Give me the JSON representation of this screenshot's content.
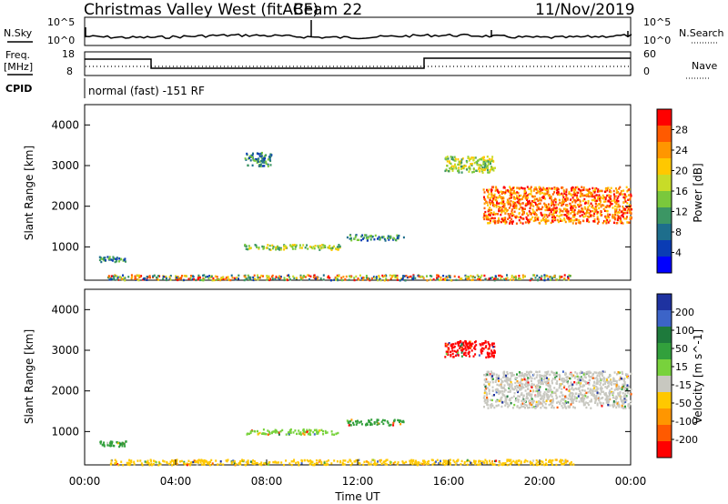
{
  "header": {
    "site": "Christmas Valley West (fitACF)",
    "beam": "Beam 22",
    "date": "11/Nov/2019"
  },
  "summary_panel": {
    "left_top_label": "N.Sky",
    "left_freq_label_1": "Freq.",
    "left_freq_label_2": "[MHz]",
    "left_cpid_label": "CPID",
    "right_top_label": "N.Search",
    "right_nave_label": "Nave",
    "noise_ticks": [
      "10^5",
      "10^0"
    ],
    "freq_ticks": [
      "18",
      "8"
    ],
    "nave_ticks": [
      "60",
      "0"
    ],
    "cpid_text": "normal (fast) -151 RF"
  },
  "chart_data": [
    {
      "type": "heatmap",
      "name_text": "power",
      "ylabel": "Slant Range [km]",
      "xlabel": "",
      "colorbar_label": "Power [dB]",
      "colorbar_ticks": [
        "28",
        "24",
        "20",
        "16",
        "12",
        "8",
        "4"
      ],
      "colorbar_colors": [
        "#ff0000",
        "#ff5a00",
        "#ff9600",
        "#ffc800",
        "#c8dc28",
        "#7ac83c",
        "#3c9664",
        "#1e6e8c",
        "#0a3cb4",
        "#0000ff"
      ],
      "xlim": [
        0,
        24
      ],
      "ylim": [
        180,
        4500
      ],
      "yticks": [
        "1000",
        "2000",
        "3000",
        "4000"
      ],
      "regions": [
        {
          "t": [
            0.6,
            1.8
          ],
          "r": [
            650,
            780
          ],
          "level": "low"
        },
        {
          "t": [
            1.0,
            21.5
          ],
          "r": [
            200,
            330
          ],
          "level": "mixed"
        },
        {
          "t": [
            7.0,
            11.2
          ],
          "r": [
            950,
            1080
          ],
          "level": "mid"
        },
        {
          "t": [
            7.0,
            8.2
          ],
          "r": [
            3000,
            3350
          ],
          "level": "low"
        },
        {
          "t": [
            11.5,
            14.0
          ],
          "r": [
            1180,
            1320
          ],
          "level": "low"
        },
        {
          "t": [
            15.8,
            18.0
          ],
          "r": [
            2850,
            3250
          ],
          "level": "mid"
        },
        {
          "t": [
            17.5,
            24.0
          ],
          "r": [
            1600,
            2500
          ],
          "level": "high"
        }
      ]
    },
    {
      "type": "heatmap",
      "name_text": "velocity",
      "ylabel": "Slant Range [km]",
      "xlabel": "Time UT",
      "colorbar_label": "Velocity [m s^-1]",
      "colorbar_ticks": [
        "200",
        "100",
        "50",
        "15",
        "-15",
        "-50",
        "-100",
        "-200"
      ],
      "colorbar_colors": [
        "#1e32a0",
        "#3c64c8",
        "#1e7a3c",
        "#32a03c",
        "#78d23c",
        "#c8c8c0",
        "#ffc800",
        "#ff9600",
        "#ff5a00",
        "#ff0000"
      ],
      "xlim": [
        0,
        24
      ],
      "ylim": [
        180,
        4500
      ],
      "yticks": [
        "1000",
        "2000",
        "3000",
        "4000"
      ],
      "xticks": [
        "00:00",
        "04:00",
        "08:00",
        "12:00",
        "16:00",
        "20:00",
        "00:00"
      ],
      "regions": [
        {
          "t": [
            0.6,
            1.8
          ],
          "r": [
            650,
            780
          ],
          "value": "50"
        },
        {
          "t": [
            1.0,
            21.5
          ],
          "r": [
            200,
            330
          ],
          "value": "-50"
        },
        {
          "t": [
            7.0,
            11.2
          ],
          "r": [
            950,
            1080
          ],
          "value": "15"
        },
        {
          "t": [
            11.5,
            14.0
          ],
          "r": [
            1180,
            1320
          ],
          "value": "50"
        },
        {
          "t": [
            15.8,
            18.0
          ],
          "r": [
            2850,
            3250
          ],
          "value": "-200"
        },
        {
          "t": [
            17.5,
            24.0
          ],
          "r": [
            1600,
            2500
          ],
          "value": "-15"
        }
      ]
    }
  ]
}
